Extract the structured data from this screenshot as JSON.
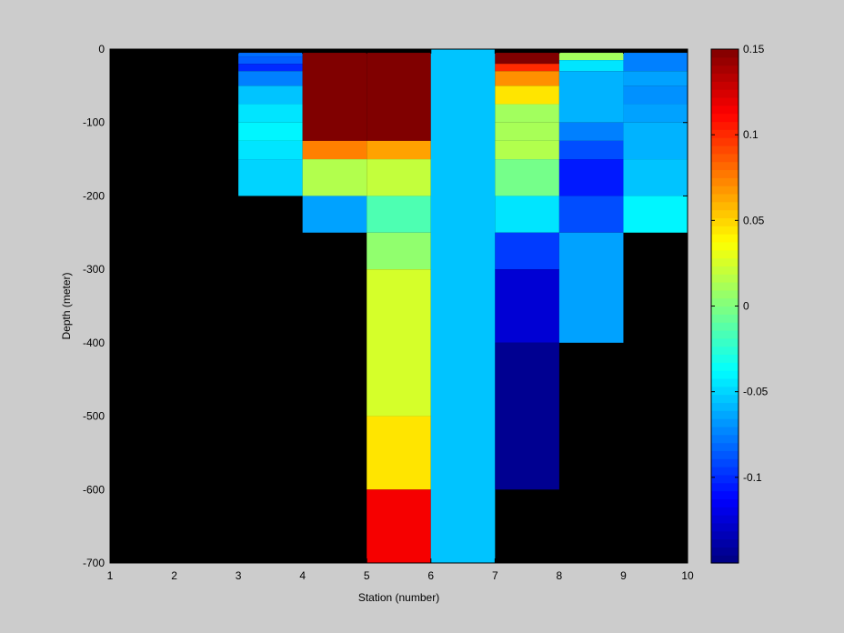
{
  "chart_data": {
    "type": "heatmap",
    "title": "",
    "xlabel": "Station (number)",
    "ylabel": "Depth (meter)",
    "xlim": [
      1,
      10
    ],
    "ylim": [
      -700,
      0
    ],
    "xticks": [
      1,
      2,
      3,
      4,
      5,
      6,
      7,
      8,
      9,
      10
    ],
    "yticks": [
      0,
      -100,
      -200,
      -300,
      -400,
      -500,
      -600,
      -700
    ],
    "background_color": "#000000",
    "colorbar": {
      "colormap": "jet",
      "clim": [
        -0.15,
        0.15
      ],
      "ticks": [
        0.15,
        0.1,
        0.05,
        0,
        -0.05,
        -0.1
      ],
      "tick_labels": [
        "0.15",
        "0.1",
        "0.05",
        "0",
        "-0.05",
        "-0.1"
      ],
      "placement": "right"
    },
    "cells": [
      {
        "x0": 3,
        "x1": 4,
        "d0": -5,
        "d1": -10,
        "value": -0.08
      },
      {
        "x0": 3,
        "x1": 4,
        "d0": -10,
        "d1": -20,
        "value": -0.085
      },
      {
        "x0": 3,
        "x1": 4,
        "d0": -20,
        "d1": -30,
        "value": -0.1
      },
      {
        "x0": 3,
        "x1": 4,
        "d0": -30,
        "d1": -50,
        "value": -0.075
      },
      {
        "x0": 3,
        "x1": 4,
        "d0": -50,
        "d1": -75,
        "value": -0.055
      },
      {
        "x0": 3,
        "x1": 4,
        "d0": -75,
        "d1": -100,
        "value": -0.045
      },
      {
        "x0": 3,
        "x1": 4,
        "d0": -100,
        "d1": -125,
        "value": -0.04
      },
      {
        "x0": 3,
        "x1": 4,
        "d0": -125,
        "d1": -150,
        "value": -0.045
      },
      {
        "x0": 3,
        "x1": 4,
        "d0": -150,
        "d1": -200,
        "value": -0.05
      },
      {
        "x0": 4,
        "x1": 5,
        "d0": -5,
        "d1": -125,
        "value": 0.15
      },
      {
        "x0": 4,
        "x1": 5,
        "d0": -125,
        "d1": -150,
        "value": 0.075
      },
      {
        "x0": 4,
        "x1": 5,
        "d0": -150,
        "d1": -200,
        "value": 0.015
      },
      {
        "x0": 4,
        "x1": 5,
        "d0": -200,
        "d1": -250,
        "value": -0.065
      },
      {
        "x0": 5,
        "x1": 6,
        "d0": -5,
        "d1": -125,
        "value": 0.15
      },
      {
        "x0": 5,
        "x1": 6,
        "d0": -125,
        "d1": -150,
        "value": 0.065
      },
      {
        "x0": 5,
        "x1": 6,
        "d0": -150,
        "d1": -200,
        "value": 0.02
      },
      {
        "x0": 5,
        "x1": 6,
        "d0": -200,
        "d1": -250,
        "value": -0.015
      },
      {
        "x0": 5,
        "x1": 6,
        "d0": -250,
        "d1": -300,
        "value": 0.005
      },
      {
        "x0": 5,
        "x1": 6,
        "d0": -300,
        "d1": -500,
        "value": 0.025
      },
      {
        "x0": 5,
        "x1": 6,
        "d0": -500,
        "d1": -600,
        "value": 0.045
      },
      {
        "x0": 5,
        "x1": 6,
        "d0": -600,
        "d1": -700,
        "value": 0.115
      },
      {
        "x0": 6,
        "x1": 7,
        "d0": 0,
        "d1": -700,
        "value": -0.055
      },
      {
        "x0": 7,
        "x1": 8,
        "d0": -5,
        "d1": -20,
        "value": 0.15
      },
      {
        "x0": 7,
        "x1": 8,
        "d0": -20,
        "d1": -30,
        "value": 0.1
      },
      {
        "x0": 7,
        "x1": 8,
        "d0": -30,
        "d1": -50,
        "value": 0.07
      },
      {
        "x0": 7,
        "x1": 8,
        "d0": -50,
        "d1": -75,
        "value": 0.045
      },
      {
        "x0": 7,
        "x1": 8,
        "d0": -75,
        "d1": -100,
        "value": 0.01
      },
      {
        "x0": 7,
        "x1": 8,
        "d0": -100,
        "d1": -125,
        "value": 0.012
      },
      {
        "x0": 7,
        "x1": 8,
        "d0": -125,
        "d1": -150,
        "value": 0.015
      },
      {
        "x0": 7,
        "x1": 8,
        "d0": -150,
        "d1": -200,
        "value": -0.003
      },
      {
        "x0": 7,
        "x1": 8,
        "d0": -200,
        "d1": -250,
        "value": -0.045
      },
      {
        "x0": 7,
        "x1": 8,
        "d0": -250,
        "d1": -300,
        "value": -0.095
      },
      {
        "x0": 7,
        "x1": 8,
        "d0": -300,
        "d1": -400,
        "value": -0.125
      },
      {
        "x0": 7,
        "x1": 8,
        "d0": -400,
        "d1": -600,
        "value": -0.145
      },
      {
        "x0": 8,
        "x1": 9,
        "d0": -5,
        "d1": -15,
        "value": 0.01
      },
      {
        "x0": 8,
        "x1": 9,
        "d0": -15,
        "d1": -30,
        "value": -0.045
      },
      {
        "x0": 8,
        "x1": 9,
        "d0": -30,
        "d1": -100,
        "value": -0.06
      },
      {
        "x0": 8,
        "x1": 9,
        "d0": -100,
        "d1": -125,
        "value": -0.075
      },
      {
        "x0": 8,
        "x1": 9,
        "d0": -125,
        "d1": -150,
        "value": -0.09
      },
      {
        "x0": 8,
        "x1": 9,
        "d0": -150,
        "d1": -200,
        "value": -0.105
      },
      {
        "x0": 8,
        "x1": 9,
        "d0": -200,
        "d1": -250,
        "value": -0.09
      },
      {
        "x0": 8,
        "x1": 9,
        "d0": -250,
        "d1": -400,
        "value": -0.065
      },
      {
        "x0": 9,
        "x1": 10,
        "d0": -5,
        "d1": -30,
        "value": -0.075
      },
      {
        "x0": 9,
        "x1": 10,
        "d0": -30,
        "d1": -50,
        "value": -0.065
      },
      {
        "x0": 9,
        "x1": 10,
        "d0": -50,
        "d1": -75,
        "value": -0.07
      },
      {
        "x0": 9,
        "x1": 10,
        "d0": -75,
        "d1": -100,
        "value": -0.065
      },
      {
        "x0": 9,
        "x1": 10,
        "d0": -100,
        "d1": -150,
        "value": -0.06
      },
      {
        "x0": 9,
        "x1": 10,
        "d0": -150,
        "d1": -200,
        "value": -0.055
      },
      {
        "x0": 9,
        "x1": 10,
        "d0": -200,
        "d1": -250,
        "value": -0.04
      }
    ]
  }
}
